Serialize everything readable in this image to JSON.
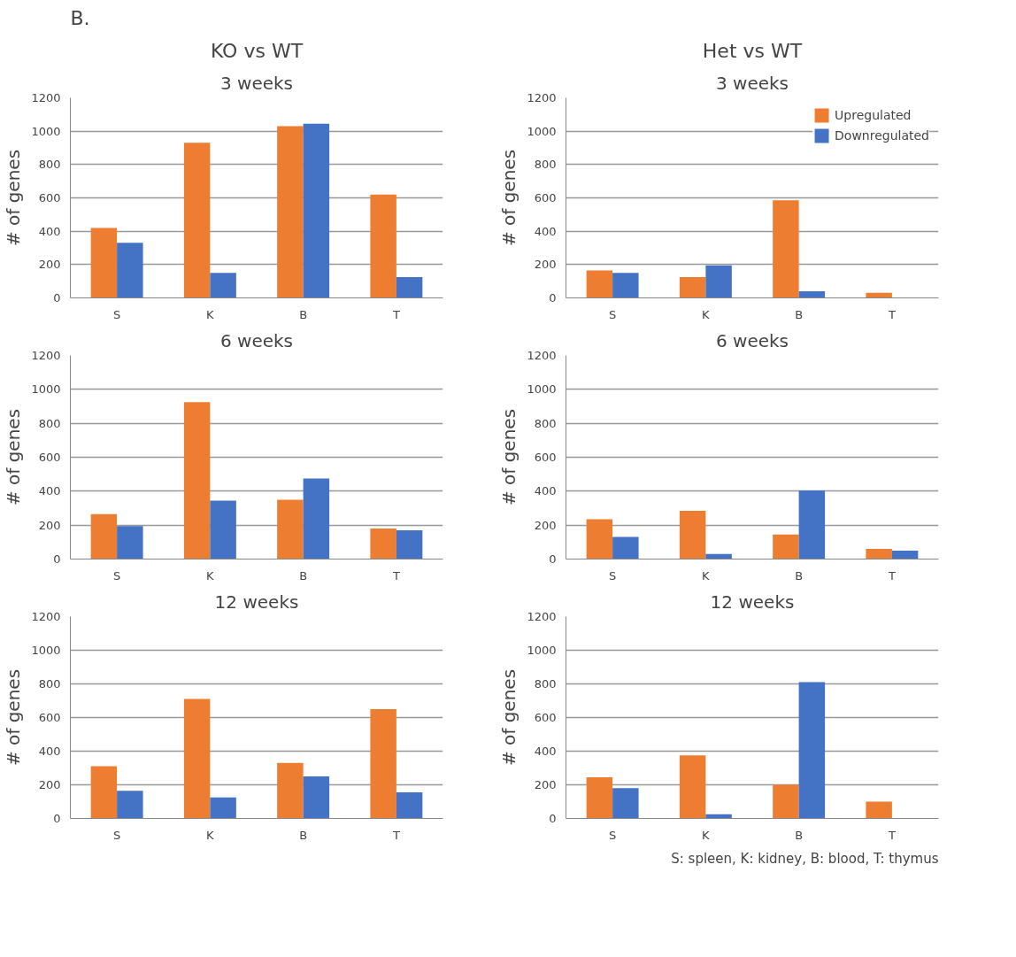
{
  "chart_data": [
    {
      "type": "bar",
      "title": "3 weeks",
      "annotations": [
        "B.",
        "KO vs WT"
      ],
      "ylabel": "# of genes",
      "categories": [
        "S",
        "K",
        "B",
        "T"
      ],
      "ylim": [
        0,
        1200
      ],
      "yticks": [
        0,
        200,
        400,
        600,
        800,
        1000,
        1200
      ],
      "grid": "y",
      "series": [
        {
          "color": "#ed7d31",
          "values": [
            420,
            930,
            1030,
            620
          ]
        },
        {
          "color": "#4472c4",
          "values": [
            330,
            150,
            1045,
            125
          ]
        }
      ]
    },
    {
      "type": "bar",
      "title": "3 weeks",
      "annotations": [
        "Het vs WT"
      ],
      "ylabel": "# of genes",
      "categories": [
        "S",
        "K",
        "B",
        "T"
      ],
      "ylim": [
        0,
        1200
      ],
      "yticks": [
        0,
        200,
        400,
        600,
        800,
        1000,
        1200
      ],
      "grid": "y",
      "legend": "top right",
      "series": [
        {
          "name": "Upregulated",
          "color": "#ed7d31",
          "values": [
            165,
            125,
            585,
            30
          ]
        },
        {
          "name": "Downregulated",
          "color": "#4472c4",
          "values": [
            150,
            195,
            40,
            0
          ]
        }
      ]
    },
    {
      "type": "bar",
      "title": "6 weeks",
      "ylabel": "# of genes",
      "categories": [
        "S",
        "K",
        "B",
        "T"
      ],
      "ylim": [
        0,
        1200
      ],
      "yticks": [
        0,
        200,
        400,
        600,
        800,
        1000,
        1200
      ],
      "grid": "y",
      "series": [
        {
          "color": "#ed7d31",
          "values": [
            265,
            925,
            350,
            180
          ]
        },
        {
          "color": "#4472c4",
          "values": [
            195,
            345,
            475,
            170
          ]
        }
      ]
    },
    {
      "type": "bar",
      "title": "6 weeks",
      "ylabel": "# of genes",
      "categories": [
        "S",
        "K",
        "B",
        "T"
      ],
      "ylim": [
        0,
        1200
      ],
      "yticks": [
        0,
        200,
        400,
        600,
        800,
        1000,
        1200
      ],
      "grid": "y",
      "series": [
        {
          "color": "#ed7d31",
          "values": [
            235,
            285,
            145,
            60
          ]
        },
        {
          "color": "#4472c4",
          "values": [
            130,
            30,
            405,
            50
          ]
        }
      ]
    },
    {
      "type": "bar",
      "title": "12 weeks",
      "ylabel": "# of genes",
      "categories": [
        "S",
        "K",
        "B",
        "T"
      ],
      "ylim": [
        0,
        1200
      ],
      "yticks": [
        0,
        200,
        400,
        600,
        800,
        1000,
        1200
      ],
      "grid": "y",
      "series": [
        {
          "color": "#ed7d31",
          "values": [
            310,
            710,
            330,
            650
          ]
        },
        {
          "color": "#4472c4",
          "values": [
            165,
            125,
            250,
            155
          ]
        }
      ]
    },
    {
      "type": "bar",
      "title": "12 weeks",
      "annotations": [
        "S: spleen, K: kidney, B: blood, T: thymus"
      ],
      "ylabel": "# of genes",
      "categories": [
        "S",
        "K",
        "B",
        "T"
      ],
      "ylim": [
        0,
        1200
      ],
      "yticks": [
        0,
        200,
        400,
        600,
        800,
        1000,
        1200
      ],
      "grid": "y",
      "series": [
        {
          "color": "#ed7d31",
          "values": [
            245,
            375,
            200,
            100
          ]
        },
        {
          "color": "#4472c4",
          "values": [
            180,
            25,
            810,
            0
          ]
        }
      ]
    }
  ]
}
